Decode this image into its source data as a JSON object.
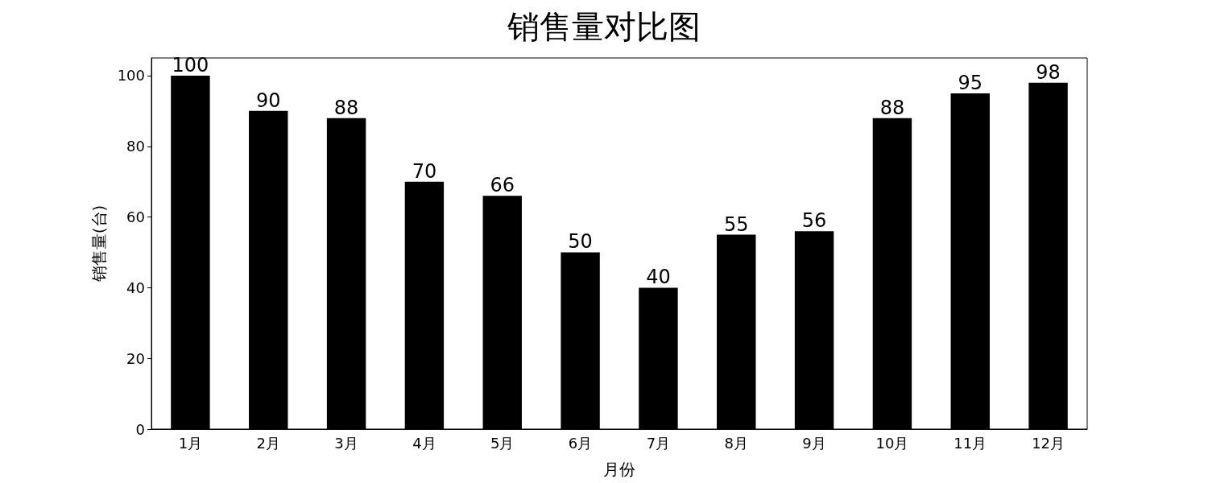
{
  "chart_data": {
    "type": "bar",
    "title": "销售量对比图",
    "xlabel": "月份",
    "ylabel": "销售量(台)",
    "categories": [
      "1月",
      "2月",
      "3月",
      "4月",
      "5月",
      "6月",
      "7月",
      "8月",
      "9月",
      "10月",
      "11月",
      "12月"
    ],
    "values": [
      100,
      90,
      88,
      70,
      66,
      50,
      40,
      55,
      56,
      88,
      95,
      98
    ],
    "color": "#000000",
    "ylim": [
      0,
      105
    ],
    "yticks": [
      0,
      20,
      40,
      60,
      80,
      100
    ],
    "grid": false,
    "data_labels": true
  }
}
